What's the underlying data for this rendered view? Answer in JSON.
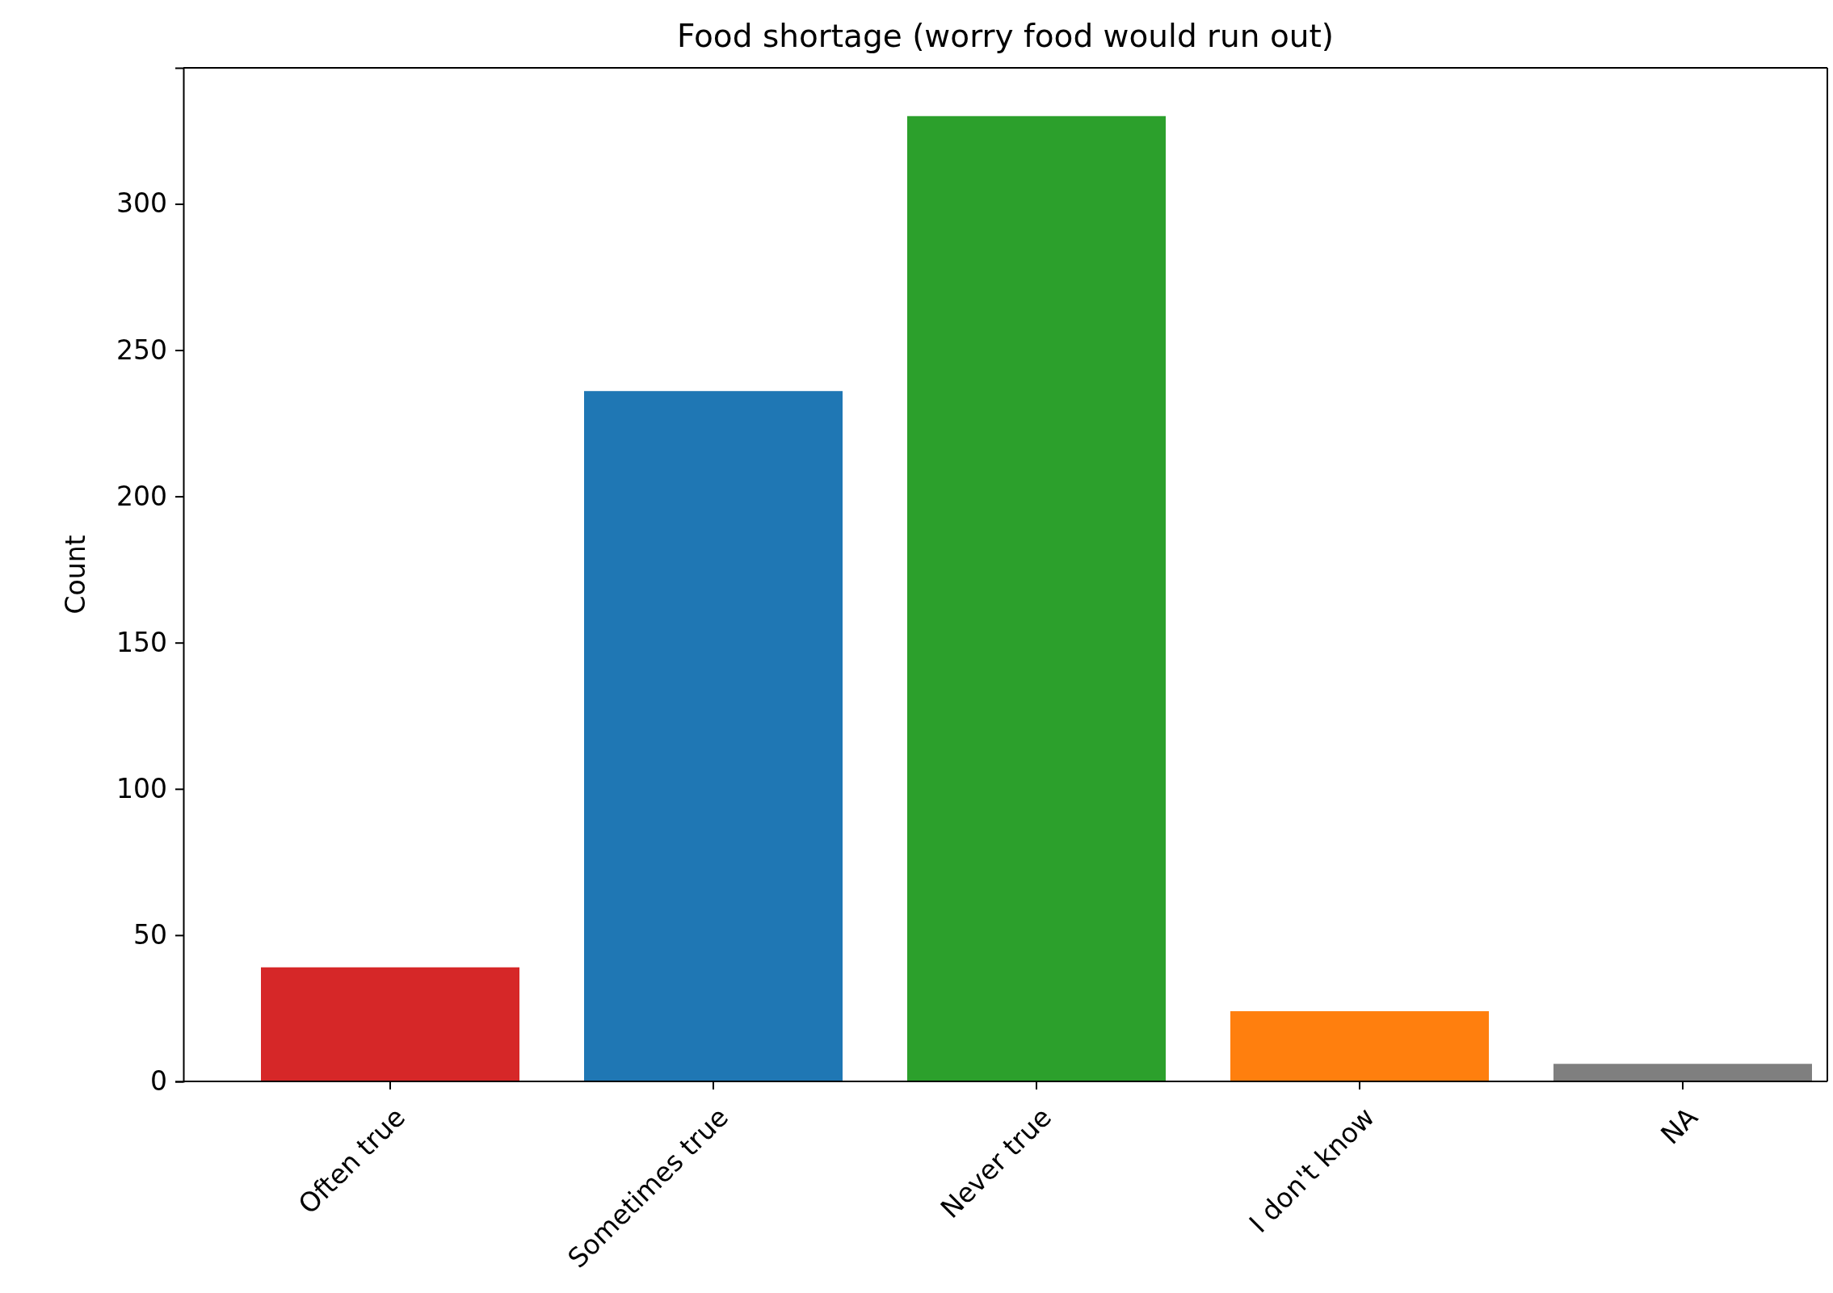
{
  "chart_data": {
    "type": "bar",
    "title": "Food shortage (worry food would run out)",
    "ylabel": "Count",
    "categories": [
      "Often true",
      "Sometimes true",
      "Never true",
      "I don't know",
      "NA"
    ],
    "values": [
      39,
      236,
      330,
      24,
      6
    ],
    "colors": [
      "#d62728",
      "#1f77b4",
      "#2ca02c",
      "#ff7f0e",
      "#7f7f7f"
    ],
    "ylim": [
      0,
      346.5
    ],
    "yticks": [
      0,
      50,
      100,
      150,
      200,
      250,
      300
    ],
    "grid": false
  }
}
